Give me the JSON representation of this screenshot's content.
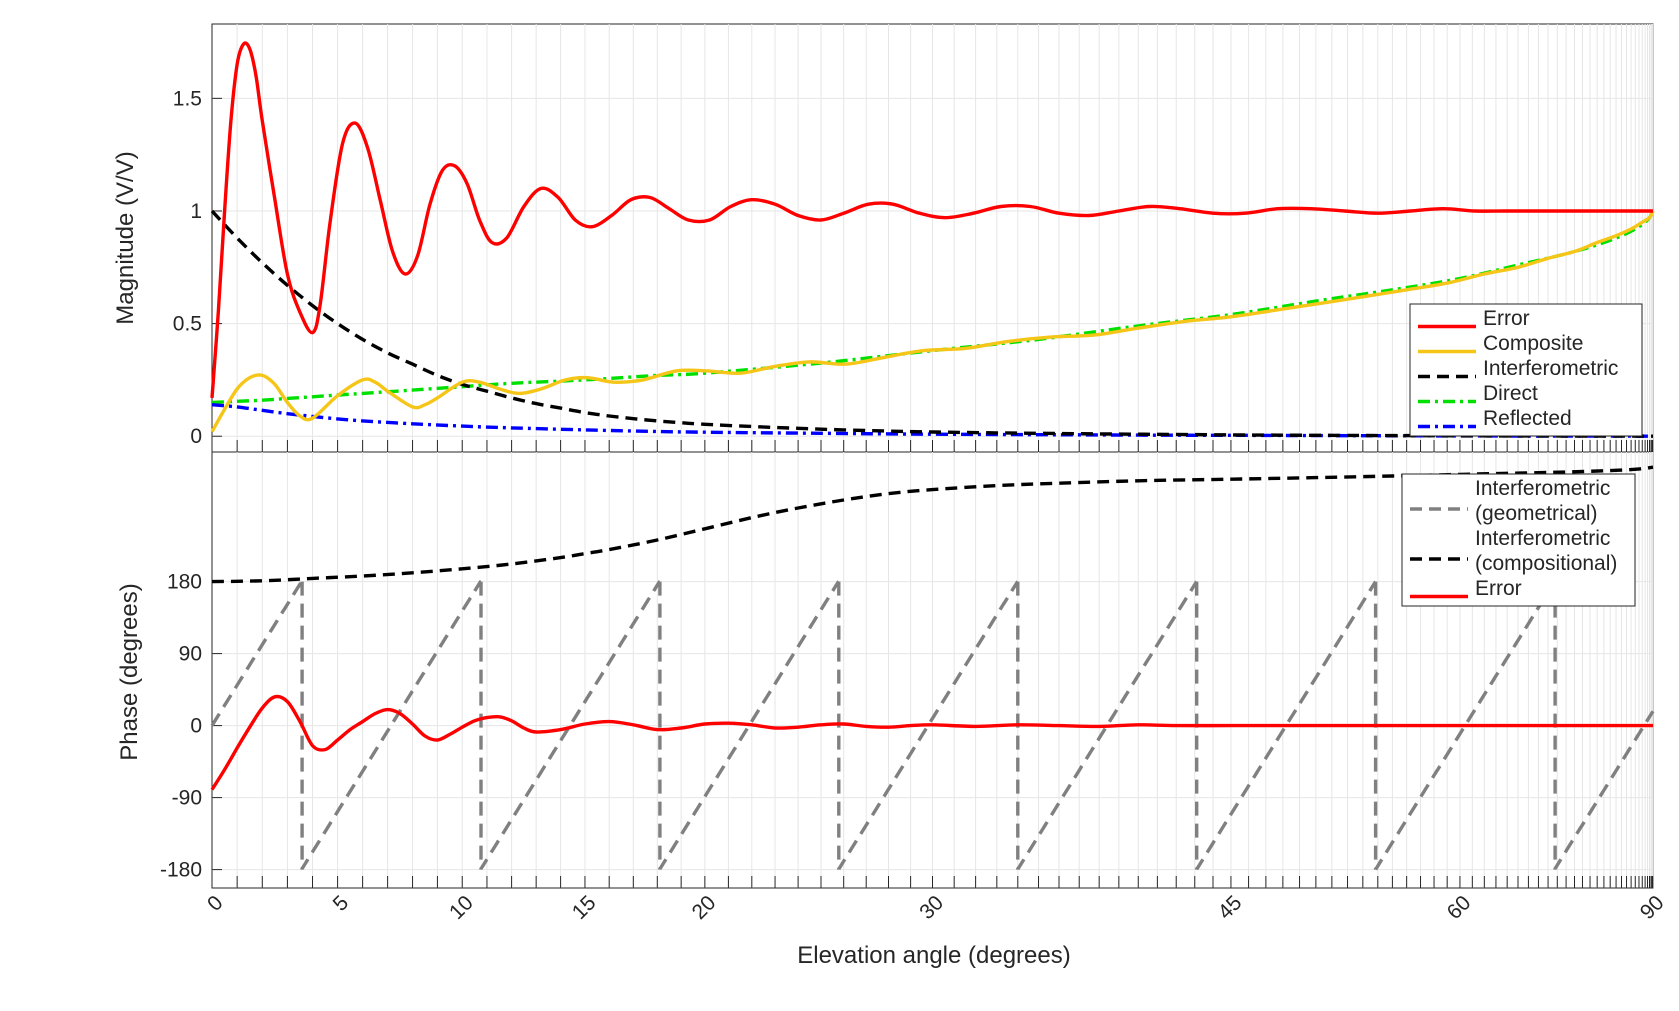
{
  "chart_data": {
    "type": "line",
    "x_scale": "sine-compressed",
    "xlabel": "Elevation angle (degrees)",
    "xlim": [
      0,
      90
    ],
    "x_ticks": [
      {
        "value": 0,
        "label": "0"
      },
      {
        "value": 5,
        "label": "5"
      },
      {
        "value": 10,
        "label": "10"
      },
      {
        "value": 15,
        "label": "15"
      },
      {
        "value": 20,
        "label": "20"
      },
      {
        "value": 30,
        "label": "30"
      },
      {
        "value": 45,
        "label": "45"
      },
      {
        "value": 60,
        "label": "60"
      },
      {
        "value": 90,
        "label": "90"
      }
    ],
    "panels": [
      {
        "id": "magnitude",
        "ylabel": "Magnitude (V/V)",
        "ylim": [
          -0.07,
          1.83
        ],
        "y_ticks": [
          {
            "value": 0,
            "label": "0"
          },
          {
            "value": 0.5,
            "label": "0.5"
          },
          {
            "value": 1,
            "label": "1"
          },
          {
            "value": 1.5,
            "label": "1.5"
          }
        ],
        "legend_position": "right",
        "legend": [
          {
            "name": "Error",
            "color": "#ff0000",
            "dash": "solid"
          },
          {
            "name": "Composite",
            "color": "#f5c518",
            "dash": "solid"
          },
          {
            "name": "Interferometric",
            "color": "#000000",
            "dash": "dashed"
          },
          {
            "name": "Direct",
            "color": "#00e000",
            "dash": "dashdot"
          },
          {
            "name": "Reflected",
            "color": "#0000ff",
            "dash": "dashdot"
          }
        ],
        "series": [
          {
            "name": "Error",
            "color": "#ff0000",
            "x": [
              0,
              0.25,
              0.5,
              0.75,
              1,
              1.25,
              1.5,
              1.75,
              2,
              2.5,
              3,
              3.5,
              4,
              4.3,
              4.7,
              5.2,
              5.7,
              6.2,
              6.7,
              7.2,
              7.7,
              8.2,
              8.7,
              9.2,
              9.7,
              10.2,
              10.7,
              11.2,
              11.8,
              12.5,
              13.2,
              13.9,
              14.6,
              15.3,
              16.1,
              16.9,
              17.7,
              18.5,
              19.3,
              20.2,
              21.1,
              22,
              23,
              24,
              25,
              26,
              27.1,
              28.2,
              29.4,
              30.6,
              31.9,
              33.2,
              34.6,
              36,
              37.5,
              39,
              40.6,
              42.2,
              44,
              45.8,
              47.7,
              49.7,
              51.8,
              54,
              56.3,
              58.7,
              61.2,
              63.8,
              66.5,
              69.3,
              72.3,
              75.5,
              78.9,
              82.5,
              86.3,
              90
            ],
            "y": [
              0.17,
              0.55,
              1.0,
              1.4,
              1.65,
              1.74,
              1.72,
              1.6,
              1.4,
              1.05,
              0.72,
              0.55,
              0.46,
              0.58,
              0.95,
              1.3,
              1.39,
              1.28,
              1.05,
              0.82,
              0.72,
              0.8,
              1.03,
              1.18,
              1.2,
              1.12,
              0.96,
              0.86,
              0.88,
              1.02,
              1.1,
              1.06,
              0.96,
              0.93,
              0.98,
              1.05,
              1.06,
              1.01,
              0.96,
              0.96,
              1.02,
              1.05,
              1.03,
              0.98,
              0.96,
              0.99,
              1.03,
              1.03,
              0.99,
              0.97,
              0.99,
              1.02,
              1.02,
              0.99,
              0.98,
              1.0,
              1.02,
              1.01,
              0.99,
              0.99,
              1.01,
              1.01,
              1.0,
              0.99,
              1.0,
              1.01,
              1.0,
              1.0,
              1.0,
              1.0,
              1.0,
              1.0,
              1.0,
              1.0,
              1.0,
              1.0
            ]
          },
          {
            "name": "Composite",
            "color": "#f5c518",
            "x": [
              0,
              0.5,
              1,
              1.5,
              2,
              2.5,
              3,
              3.5,
              4,
              5,
              6,
              6.5,
              7,
              8,
              8.5,
              9,
              10,
              10.7,
              11.5,
              12.3,
              13.2,
              14.2,
              15.1,
              16.2,
              17.4,
              18.8,
              20.1,
              21.5,
              23,
              24.5,
              26.1,
              27.8,
              29.6,
              31.5,
              33.5,
              35.6,
              37.8,
              40,
              42.5,
              45,
              47.6,
              50.3,
              53.1,
              56,
              59,
              62,
              65,
              68,
              71,
              74,
              77,
              80,
              83,
              86,
              88,
              90
            ],
            "y": [
              0.02,
              0.12,
              0.21,
              0.26,
              0.27,
              0.23,
              0.15,
              0.09,
              0.08,
              0.18,
              0.25,
              0.24,
              0.2,
              0.13,
              0.14,
              0.17,
              0.24,
              0.24,
              0.21,
              0.19,
              0.21,
              0.25,
              0.26,
              0.24,
              0.25,
              0.29,
              0.29,
              0.28,
              0.31,
              0.33,
              0.32,
              0.35,
              0.38,
              0.39,
              0.42,
              0.44,
              0.45,
              0.48,
              0.51,
              0.53,
              0.56,
              0.59,
              0.62,
              0.65,
              0.68,
              0.72,
              0.75,
              0.79,
              0.82,
              0.86,
              0.89,
              0.92,
              0.95,
              0.97,
              0.99,
              1.0
            ]
          },
          {
            "name": "Interferometric",
            "color": "#000000",
            "x": [
              0,
              1,
              2,
              3,
              4,
              5,
              6,
              7,
              8,
              9,
              10,
              11,
              12,
              13,
              14,
              15,
              16,
              17,
              18,
              19,
              20,
              22,
              24,
              26,
              28,
              30,
              33,
              36,
              40,
              45,
              50,
              55,
              60,
              70,
              80,
              90
            ],
            "y": [
              1.0,
              0.88,
              0.77,
              0.67,
              0.58,
              0.5,
              0.43,
              0.37,
              0.32,
              0.27,
              0.23,
              0.2,
              0.17,
              0.145,
              0.125,
              0.105,
              0.09,
              0.078,
              0.068,
              0.06,
              0.053,
              0.043,
              0.035,
              0.028,
              0.023,
              0.019,
              0.015,
              0.012,
              0.009,
              0.006,
              0.004,
              0.003,
              0.002,
              0.001,
              0.0005,
              0.0002
            ]
          },
          {
            "name": "Direct",
            "color": "#00e000",
            "x": [
              0,
              1,
              2,
              3,
              4,
              5,
              6,
              8,
              10,
              12,
              15,
              18,
              20,
              25,
              30,
              35,
              40,
              45,
              50,
              55,
              60,
              65,
              70,
              75,
              80,
              85,
              90
            ],
            "y": [
              0.15,
              0.155,
              0.16,
              0.168,
              0.175,
              0.183,
              0.19,
              0.205,
              0.22,
              0.235,
              0.25,
              0.27,
              0.28,
              0.325,
              0.38,
              0.43,
              0.49,
              0.54,
              0.6,
              0.65,
              0.7,
              0.76,
              0.81,
              0.86,
              0.91,
              0.96,
              1.0
            ]
          },
          {
            "name": "Reflected",
            "color": "#0000ff",
            "x": [
              0,
              1,
              2,
              3,
              4,
              5,
              6,
              8,
              10,
              12,
              15,
              18,
              20,
              25,
              30,
              35,
              40,
              45,
              50,
              55,
              60,
              65,
              70,
              75,
              80,
              85,
              90
            ],
            "y": [
              0.14,
              0.13,
              0.115,
              0.1,
              0.088,
              0.077,
              0.068,
              0.055,
              0.045,
              0.037,
              0.028,
              0.021,
              0.018,
              0.013,
              0.009,
              0.007,
              0.005,
              0.004,
              0.003,
              0.002,
              0.0015,
              0.001,
              0.0008,
              0.0006,
              0.0004,
              0.0002,
              0.0
            ]
          }
        ]
      },
      {
        "id": "phase",
        "ylabel": "Phase (degrees)",
        "ylim": [
          -203,
          342
        ],
        "y_ticks": [
          {
            "value": -180,
            "label": "-180"
          },
          {
            "value": -90,
            "label": "-90"
          },
          {
            "value": 0,
            "label": "0"
          },
          {
            "value": 90,
            "label": "90"
          },
          {
            "value": 180,
            "label": "180"
          }
        ],
        "legend_position": "top-right",
        "legend": [
          {
            "name": "Interferometric\n(geometrical)",
            "lines": [
              "Interferometric",
              "(geometrical)"
            ],
            "color": "#808080",
            "dash": "dashed"
          },
          {
            "name": "Interferometric\n(compositional)",
            "lines": [
              "Interferometric",
              "(compositional)"
            ],
            "color": "#000000",
            "dash": "dashed"
          },
          {
            "name": "Error",
            "lines": [
              "Error"
            ],
            "color": "#ff0000",
            "dash": "solid"
          }
        ],
        "series": [
          {
            "name": "Interferometric (geometrical)",
            "color": "#808080",
            "sawtooth": {
              "start": 0,
              "slope_per_sine": 1.6,
              "phase_offset_deg": 0
            }
          },
          {
            "name": "Interferometric (compositional)",
            "color": "#000000",
            "x": [
              0,
              2,
              4,
              6,
              8,
              10,
              12,
              14,
              15,
              16,
              18,
              20,
              22,
              24,
              26,
              28,
              30,
              33,
              36,
              40,
              45,
              50,
              55,
              60,
              70,
              80,
              90
            ],
            "y": [
              180,
              181,
              184,
              187,
              191,
              196,
              202,
              210,
              215,
              220,
              232,
              246,
              260,
              272,
              282,
              290,
              295,
              300,
              303,
              306,
              308,
              310,
              312,
              314,
              317,
              320,
              323
            ]
          },
          {
            "name": "Error",
            "color": "#ff0000",
            "x": [
              0,
              0.5,
              1,
              1.5,
              2,
              2.5,
              3,
              3.5,
              4,
              4.5,
              5,
              5.5,
              6,
              6.5,
              7,
              7.5,
              8,
              8.5,
              9,
              9.5,
              10,
              10.5,
              11,
              11.5,
              12,
              12.5,
              13,
              14,
              15,
              16,
              17,
              18,
              19,
              20,
              21,
              22,
              23,
              24,
              25,
              26,
              27,
              28,
              29,
              30,
              32,
              34,
              36,
              38,
              40,
              42,
              45,
              48,
              51,
              55,
              60,
              70,
              80,
              90
            ],
            "y": [
              -80,
              -55,
              -28,
              -2,
              22,
              36,
              30,
              5,
              -25,
              -30,
              -18,
              -5,
              5,
              15,
              20,
              15,
              2,
              -13,
              -18,
              -11,
              -2,
              6,
              10,
              11,
              6,
              -3,
              -8,
              -5,
              2,
              5,
              1,
              -5,
              -3,
              2,
              3,
              1,
              -3,
              -2,
              1,
              2,
              -1,
              -2,
              0,
              1,
              -1,
              1,
              0,
              -1,
              1,
              0,
              0,
              0,
              0,
              0,
              0,
              0,
              0,
              0
            ]
          }
        ]
      }
    ]
  }
}
